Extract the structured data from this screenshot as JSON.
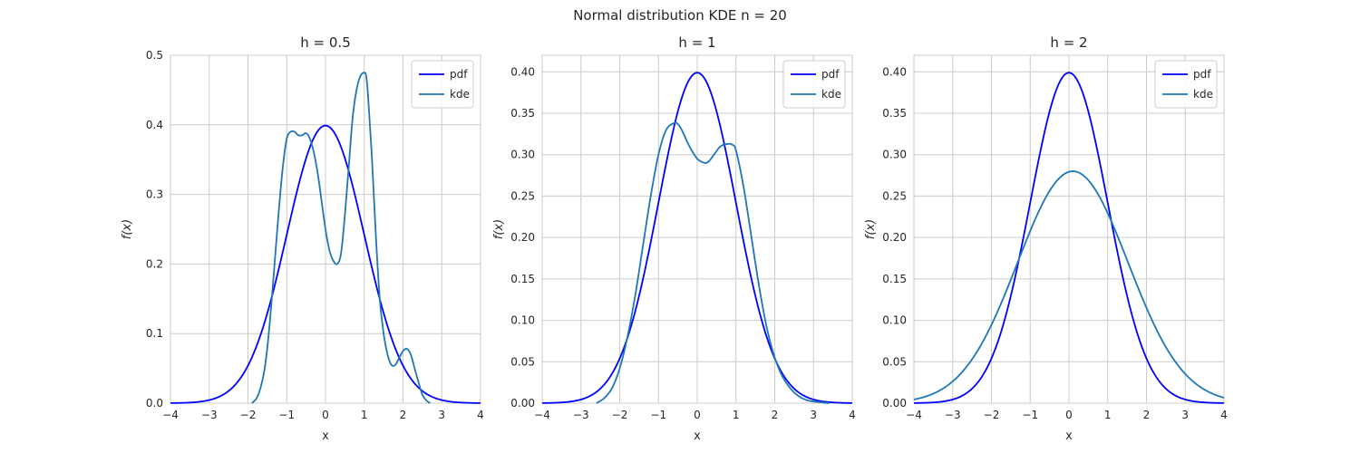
{
  "figure_title": "Normal distribution KDE n = 20",
  "colors": {
    "pdf": "#0000ff",
    "kde": "#1f77b4",
    "grid": "#cccccc",
    "frame": "#cccccc",
    "legend_border": "#cccccc"
  },
  "chart_data": [
    {
      "type": "line",
      "title": "h = 0.5",
      "xlabel": "x",
      "ylabel": "f(x)",
      "xlim": [
        -4,
        4
      ],
      "ylim": [
        0,
        0.5
      ],
      "xticks": [
        -4,
        -3,
        -2,
        -1,
        0,
        1,
        2,
        3,
        4
      ],
      "yticks": [
        0.0,
        0.1,
        0.2,
        0.3,
        0.4,
        0.5
      ],
      "ytick_labels": [
        "0.0",
        "0.1",
        "0.2",
        "0.3",
        "0.4",
        "0.5"
      ],
      "grid": true,
      "legend": "top-right",
      "series": [
        {
          "name": "pdf",
          "function": "normal_pdf"
        },
        {
          "name": "kde",
          "x": [
            -1.9,
            -1.75,
            -1.6,
            -1.5,
            -1.4,
            -1.3,
            -1.2,
            -1.1,
            -1.0,
            -0.9,
            -0.8,
            -0.7,
            -0.6,
            -0.5,
            -0.4,
            -0.3,
            -0.2,
            -0.1,
            0.0,
            0.1,
            0.2,
            0.3,
            0.4,
            0.5,
            0.6,
            0.7,
            0.8,
            0.9,
            1.0,
            1.05,
            1.1,
            1.2,
            1.3,
            1.4,
            1.5,
            1.6,
            1.7,
            1.8,
            1.9,
            2.0,
            2.1,
            2.2,
            2.3,
            2.4,
            2.5,
            2.6,
            2.7
          ],
          "y": [
            0.0,
            0.01,
            0.04,
            0.08,
            0.14,
            0.21,
            0.28,
            0.34,
            0.38,
            0.39,
            0.39,
            0.385,
            0.385,
            0.388,
            0.38,
            0.36,
            0.33,
            0.29,
            0.25,
            0.22,
            0.205,
            0.2,
            0.215,
            0.27,
            0.34,
            0.41,
            0.45,
            0.47,
            0.475,
            0.47,
            0.44,
            0.35,
            0.24,
            0.15,
            0.1,
            0.07,
            0.055,
            0.055,
            0.065,
            0.075,
            0.078,
            0.07,
            0.05,
            0.03,
            0.012,
            0.004,
            0.0
          ]
        }
      ]
    },
    {
      "type": "line",
      "title": "h = 1",
      "xlabel": "x",
      "ylabel": "f(x)",
      "xlim": [
        -4,
        4
      ],
      "ylim": [
        0,
        0.42
      ],
      "xticks": [
        -4,
        -3,
        -2,
        -1,
        0,
        1,
        2,
        3,
        4
      ],
      "yticks": [
        0.0,
        0.05,
        0.1,
        0.15,
        0.2,
        0.25,
        0.3,
        0.35,
        0.4
      ],
      "ytick_labels": [
        "0.00",
        "0.05",
        "0.10",
        "0.15",
        "0.20",
        "0.25",
        "0.30",
        "0.35",
        "0.40"
      ],
      "grid": true,
      "legend": "top-right",
      "series": [
        {
          "name": "pdf",
          "function": "normal_pdf"
        },
        {
          "name": "kde",
          "x": [
            -2.6,
            -2.4,
            -2.2,
            -2.0,
            -1.8,
            -1.6,
            -1.4,
            -1.2,
            -1.0,
            -0.8,
            -0.6,
            -0.5,
            -0.4,
            -0.2,
            0.0,
            0.2,
            0.3,
            0.4,
            0.6,
            0.8,
            0.9,
            1.0,
            1.2,
            1.4,
            1.6,
            1.8,
            2.0,
            2.2,
            2.4,
            2.6,
            2.8,
            3.0,
            3.2,
            3.4
          ],
          "y": [
            0.0,
            0.006,
            0.018,
            0.042,
            0.08,
            0.13,
            0.19,
            0.25,
            0.3,
            0.33,
            0.338,
            0.337,
            0.33,
            0.31,
            0.295,
            0.29,
            0.292,
            0.298,
            0.31,
            0.313,
            0.312,
            0.305,
            0.26,
            0.2,
            0.14,
            0.09,
            0.055,
            0.032,
            0.018,
            0.009,
            0.004,
            0.002,
            0.001,
            0.0
          ]
        }
      ]
    },
    {
      "type": "line",
      "title": "h = 2",
      "xlabel": "x",
      "ylabel": "f(x)",
      "xlim": [
        -4,
        4
      ],
      "ylim": [
        0,
        0.42
      ],
      "xticks": [
        -4,
        -3,
        -2,
        -1,
        0,
        1,
        2,
        3,
        4
      ],
      "yticks": [
        0.0,
        0.05,
        0.1,
        0.15,
        0.2,
        0.25,
        0.3,
        0.35,
        0.4
      ],
      "ytick_labels": [
        "0.00",
        "0.05",
        "0.10",
        "0.15",
        "0.20",
        "0.25",
        "0.30",
        "0.35",
        "0.40"
      ],
      "grid": true,
      "legend": "top-right",
      "series": [
        {
          "name": "pdf",
          "function": "normal_pdf"
        },
        {
          "name": "kde",
          "function": "normal",
          "mean": 0.1,
          "sd": 1.425
        }
      ]
    }
  ]
}
